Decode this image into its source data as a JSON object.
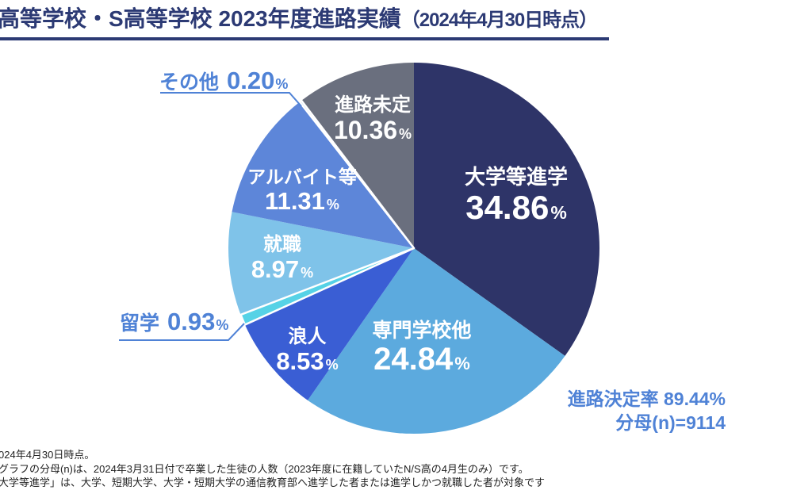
{
  "header": {
    "title_main": "高等学校・S高等学校 2023年度進路実績",
    "title_note": "（2024年4月30日時点）"
  },
  "colors": {
    "title_navy": "#2c3a74",
    "accent_blue": "#4f82d6",
    "footnote_text": "#222222"
  },
  "chart_data": {
    "type": "pie",
    "title": "高等学校・S高等学校 2023年度進路実績（2024年4月30日時点）",
    "unit": "%",
    "start_angle_deg": 0,
    "direction": "clockwise",
    "slices": [
      {
        "id": "daigaku",
        "label": "大学等進学",
        "value": 34.86,
        "value_str": "34.86",
        "color": "#2e3468",
        "label_on_slice": true
      },
      {
        "id": "senmon",
        "label": "専門学校他",
        "value": 24.84,
        "value_str": "24.84",
        "color": "#5caade",
        "label_on_slice": true
      },
      {
        "id": "ronin",
        "label": "浪人",
        "value": 8.53,
        "value_str": "8.53",
        "color": "#3a5ed4",
        "label_on_slice": true
      },
      {
        "id": "ryugaku",
        "label": "留学",
        "value": 0.93,
        "value_str": "0.93",
        "color": "#56d2e6",
        "callout": true
      },
      {
        "id": "shushoku",
        "label": "就職",
        "value": 8.97,
        "value_str": "8.97",
        "color": "#7fc3e9",
        "label_on_slice": true
      },
      {
        "id": "arubaito",
        "label": "アルバイト等",
        "value": 11.31,
        "value_str": "11.31",
        "color": "#5d86d9",
        "label_on_slice": true
      },
      {
        "id": "sonota",
        "label": "その他",
        "value": 0.2,
        "value_str": "0.20",
        "color": "#c3d3f0",
        "callout": true
      },
      {
        "id": "mitei",
        "label": "進路未定",
        "value": 10.36,
        "value_str": "10.36",
        "color": "#6a6f7e",
        "label_on_slice": true
      }
    ],
    "stats": {
      "rate_text": "進路決定率 89.44%",
      "denominator_text": "分母(n)=9114"
    }
  },
  "footer": {
    "lines": [
      "024年4月30日時点。",
      "グラフの分母(n)は、2024年3月31日付で卒業した生徒の人数（2023年度に在籍していたN/S高の4月生のみ）です。",
      "大学等進学」は、大学、短期大学、大学・短期大学の通信教育部へ進学した者または進学しかつ就職した者が対象です"
    ]
  }
}
